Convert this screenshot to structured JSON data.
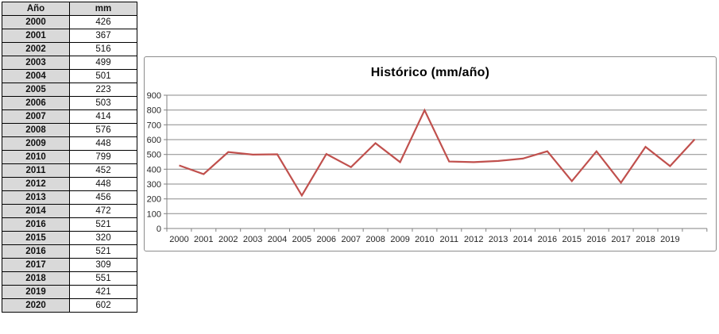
{
  "table": {
    "headers": [
      "Año",
      "mm"
    ],
    "rows": [
      [
        "2000",
        "426"
      ],
      [
        "2001",
        "367"
      ],
      [
        "2002",
        "516"
      ],
      [
        "2003",
        "499"
      ],
      [
        "2004",
        "501"
      ],
      [
        "2005",
        "223"
      ],
      [
        "2006",
        "503"
      ],
      [
        "2007",
        "414"
      ],
      [
        "2008",
        "576"
      ],
      [
        "2009",
        "448"
      ],
      [
        "2010",
        "799"
      ],
      [
        "2011",
        "452"
      ],
      [
        "2012",
        "448"
      ],
      [
        "2013",
        "456"
      ],
      [
        "2014",
        "472"
      ],
      [
        "2016",
        "521"
      ],
      [
        "2015",
        "320"
      ],
      [
        "2016",
        "521"
      ],
      [
        "2017",
        "309"
      ],
      [
        "2018",
        "551"
      ],
      [
        "2019",
        "421"
      ],
      [
        "2020",
        "602"
      ]
    ]
  },
  "chart_data": {
    "type": "line",
    "title": "Histórico (mm/año)",
    "categories": [
      "2000",
      "2001",
      "2002",
      "2003",
      "2004",
      "2005",
      "2006",
      "2007",
      "2008",
      "2009",
      "2010",
      "2011",
      "2012",
      "2013",
      "2014",
      "2016",
      "2015",
      "2016",
      "2017",
      "2018",
      "2019",
      "2020"
    ],
    "tick_labels": [
      "2000",
      "2001",
      "2002",
      "2003",
      "2004",
      "2005",
      "2006",
      "2007",
      "2008",
      "2009",
      "2010",
      "2011",
      "2012",
      "2013",
      "2014",
      "2016",
      "2015",
      "2016",
      "2017",
      "2018",
      "2019"
    ],
    "values": [
      426,
      367,
      516,
      499,
      501,
      223,
      503,
      414,
      576,
      448,
      799,
      452,
      448,
      456,
      472,
      521,
      320,
      521,
      309,
      551,
      421,
      602
    ],
    "xlabel": "",
    "ylabel": "",
    "ylim": [
      0,
      900
    ],
    "y_ticks": [
      0,
      100,
      200,
      300,
      400,
      500,
      600,
      700,
      800,
      900
    ],
    "grid": true,
    "legend": "none",
    "line_color": "#c0504d",
    "grid_color": "#8a8a8a",
    "axis_color": "#808080"
  }
}
